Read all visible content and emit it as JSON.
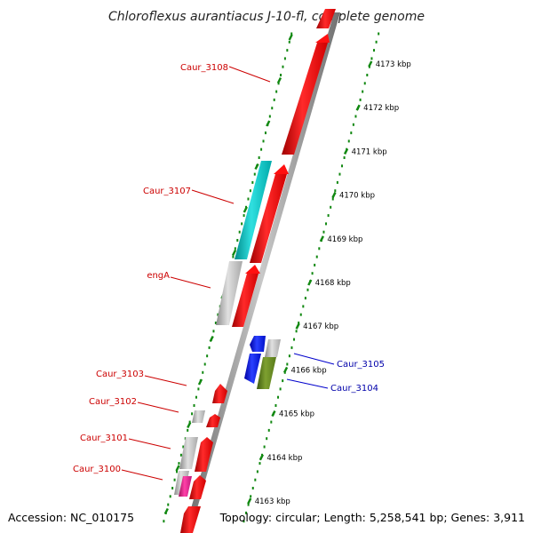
{
  "title": "Chloroflexus aurantiacus J-10-fl, complete genome",
  "accession": "Accession: NC_010175",
  "summary": "Topology: circular; Length: 5,258,541 bp; Genes: 3,911",
  "scale": {
    "unit": "kbp",
    "ticks": [
      "4163 kbp",
      "4164 kbp",
      "4165 kbp",
      "4166 kbp",
      "4167 kbp",
      "4168 kbp",
      "4169 kbp",
      "4170 kbp",
      "4171 kbp",
      "4172 kbp",
      "4173 kbp"
    ]
  },
  "colors": {
    "cds": "#ff1010",
    "rna": "#00c8c8",
    "unannotated": "#c0c0c0",
    "other_blue": "#1020ff",
    "other_olive": "#6b8e23",
    "magenta": "#e0208a",
    "label_forward": "#cc0000",
    "label_reverse": "#0000aa",
    "tick": "#118811",
    "backbone": "#888888"
  },
  "labels": [
    {
      "text": "Caur_3108",
      "color": "red"
    },
    {
      "text": "Caur_3107",
      "color": "red"
    },
    {
      "text": "engA",
      "color": "red"
    },
    {
      "text": "Caur_3103",
      "color": "red"
    },
    {
      "text": "Caur_3102",
      "color": "red"
    },
    {
      "text": "Caur_3101",
      "color": "red"
    },
    {
      "text": "Caur_3100",
      "color": "red"
    },
    {
      "text": "Caur_3105",
      "color": "blue"
    },
    {
      "text": "Caur_3104",
      "color": "blue"
    }
  ]
}
